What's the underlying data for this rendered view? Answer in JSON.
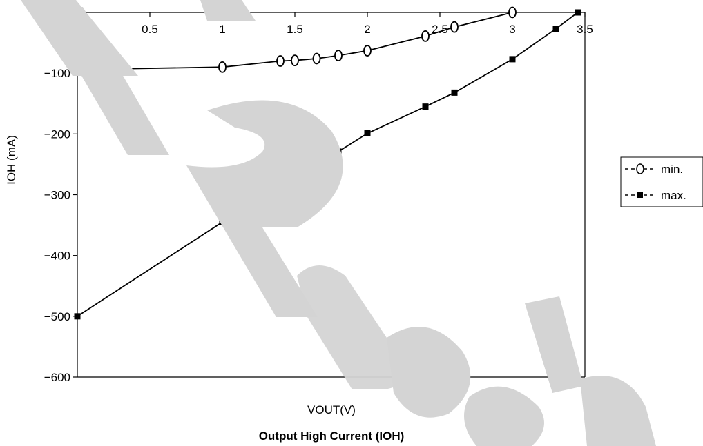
{
  "chart_data": {
    "type": "line",
    "title": "Output High Current (IOH)",
    "xlabel": "VOUT(V)",
    "ylabel": "IOH (mA)",
    "xlim": [
      0,
      3.5
    ],
    "ylim": [
      -600,
      0
    ],
    "x_ticks": [
      "0",
      "0.5",
      "1",
      "1.5",
      "2",
      "2.5",
      "3",
      "3.5"
    ],
    "y_ticks": [
      "0",
      "−100",
      "−200",
      "−300",
      "−400",
      "−500",
      "−600"
    ],
    "grid": false,
    "legend_position": "right",
    "series": [
      {
        "name": "min.",
        "marker": "open-circle",
        "color": "#000000",
        "x": [
          0,
          1,
          1.4,
          1.5,
          1.65,
          1.8,
          2,
          2.4,
          2.6,
          3
        ],
        "y": [
          -94,
          -90,
          -80,
          -79,
          -76,
          -71,
          -63,
          -39,
          -24,
          0
        ]
      },
      {
        "name": "max.",
        "marker": "filled-square",
        "color": "#000000",
        "x": [
          0,
          1,
          1.4,
          1.5,
          1.65,
          1.8,
          2,
          2.4,
          2.6,
          3,
          3.3,
          3.45
        ],
        "y": [
          -500,
          -345,
          -288,
          -274,
          -248,
          -229,
          -199,
          -155,
          -132,
          -77,
          -27,
          0
        ]
      }
    ]
  }
}
